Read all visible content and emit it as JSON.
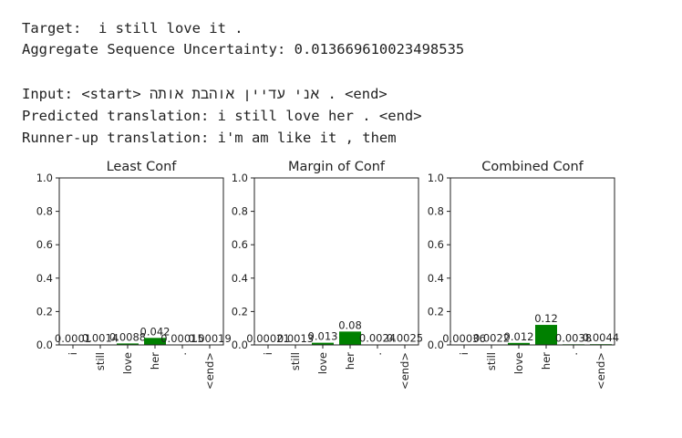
{
  "text_output": {
    "target": "Target:  i still love it .",
    "aggregate": "Aggregate Sequence Uncertainty: 0.013669610023498535",
    "input_prefix": "Input: <start> ",
    "input_hebrew": "אני עדיין אוהבת אותה",
    "input_suffix": " . <end>",
    "predicted": "Predicted translation: i still love her . <end>",
    "runner_up": "Runner-up translation: i'm am like it , them"
  },
  "chart_data": [
    {
      "type": "bar",
      "title": "Least Conf",
      "categories": [
        "i",
        "still",
        "love",
        "her",
        ".",
        "<end>"
      ],
      "values": [
        0.0001,
        0.0014,
        0.0088,
        0.042,
        0.00015,
        0.00019
      ],
      "value_labels": [
        "0.0001",
        "0.0014",
        "0.0088",
        "0.042",
        "0.00015",
        "0.00019"
      ],
      "ylim": [
        0,
        1.0
      ],
      "yticks": [
        "0.0",
        "0.2",
        "0.4",
        "0.6",
        "0.8",
        "1.0"
      ],
      "bar_color": "#008000"
    },
    {
      "type": "bar",
      "title": "Margin of Conf",
      "categories": [
        "i",
        "still",
        "love",
        "her",
        ".",
        "<end>"
      ],
      "values": [
        0.00021,
        0.0013,
        0.013,
        0.08,
        0.0024,
        0.0025
      ],
      "value_labels": [
        "0.00021",
        "0.0013",
        "0.013",
        "0.08",
        "0.0024",
        "0.0025"
      ],
      "ylim": [
        0,
        1.0
      ],
      "yticks": [
        "0.0",
        "0.2",
        "0.4",
        "0.6",
        "0.8",
        "1.0"
      ],
      "bar_color": "#008000"
    },
    {
      "type": "bar",
      "title": "Combined Conf",
      "categories": [
        "i",
        "still",
        "love",
        "her",
        ".",
        "<end>"
      ],
      "values": [
        0.00036,
        0.0022,
        0.012,
        0.12,
        0.0038,
        0.0044
      ],
      "value_labels": [
        "0.00036",
        "0.0022",
        "0.012",
        "0.12",
        "0.0038",
        "0.0044"
      ],
      "ylim": [
        0,
        1.0
      ],
      "yticks": [
        "0.0",
        "0.2",
        "0.4",
        "0.6",
        "0.8",
        "1.0"
      ],
      "bar_color": "#008000"
    }
  ]
}
